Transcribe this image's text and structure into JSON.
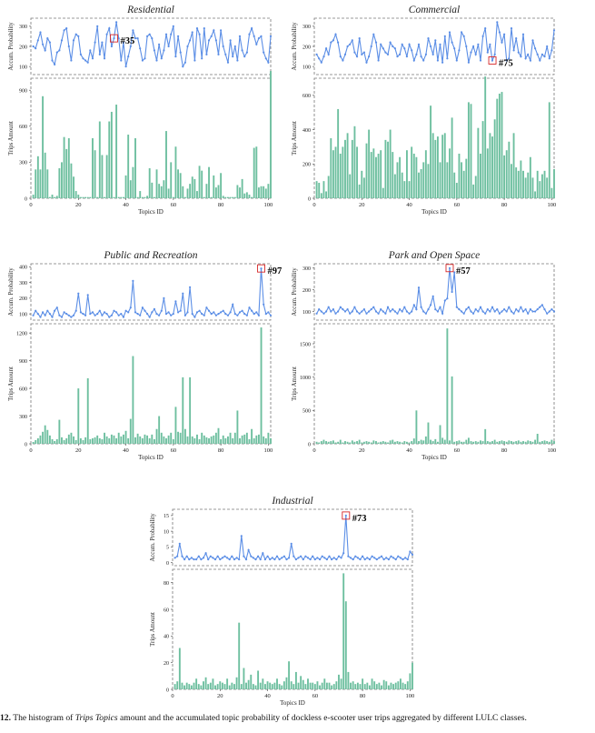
{
  "colors": {
    "line": "#5b8ee6",
    "bar": "#6dbf9f",
    "highlight": "#d62728",
    "frame": "#777777"
  },
  "caption": {
    "label": "12.",
    "pre": "The histogram of",
    "italic": "Trips Topics",
    "post": "amount and the accumulated topic probability of dockless e-scooter user trips aggregated by different LULC classes."
  },
  "chart_data": [
    {
      "type": "line",
      "panel": "Residential",
      "title": "Residential",
      "xlabel": "Topics ID",
      "ylabel": "Accum. Probability",
      "xlim": [
        0,
        101
      ],
      "ylim": [
        60,
        340
      ],
      "yticks": [
        100,
        200,
        300
      ],
      "xticks": [
        0,
        20,
        40,
        60,
        80,
        100
      ],
      "highlight": {
        "x": 35,
        "label": "#35"
      },
      "x_start": 1,
      "values": [
        200,
        190,
        230,
        270,
        210,
        180,
        240,
        220,
        130,
        110,
        170,
        180,
        230,
        280,
        290,
        200,
        130,
        230,
        260,
        250,
        160,
        140,
        130,
        120,
        180,
        140,
        220,
        300,
        160,
        220,
        140,
        260,
        290,
        200,
        240,
        320,
        240,
        130,
        220,
        100,
        150,
        200,
        280,
        240,
        240,
        190,
        130,
        140,
        250,
        260,
        240,
        180,
        130,
        210,
        140,
        180,
        260,
        200,
        260,
        300,
        150,
        250,
        170,
        100,
        120,
        200,
        230,
        270,
        130,
        290,
        260,
        140,
        290,
        160,
        230,
        250,
        280,
        230,
        160,
        280,
        200,
        160,
        120,
        230,
        150,
        200,
        130,
        250,
        180,
        150,
        170,
        260,
        290,
        250,
        210,
        240,
        250,
        170,
        140,
        120,
        250
      ]
    },
    {
      "type": "bar",
      "panel": "Residential",
      "xlabel": "Topics ID",
      "ylabel": "Trips Amount",
      "xlim": [
        0,
        101
      ],
      "ylim": [
        0,
        1000
      ],
      "yticks": [
        0,
        300,
        600,
        900
      ],
      "xticks": [
        0,
        20,
        40,
        60,
        80,
        100
      ],
      "x_start": 1,
      "values": [
        30,
        240,
        350,
        240,
        850,
        380,
        240,
        10,
        30,
        10,
        20,
        250,
        300,
        510,
        410,
        500,
        290,
        180,
        60,
        30,
        10,
        10,
        10,
        10,
        10,
        500,
        400,
        10,
        640,
        360,
        10,
        360,
        640,
        720,
        10,
        780,
        10,
        10,
        10,
        190,
        530,
        150,
        260,
        500,
        10,
        60,
        10,
        10,
        20,
        250,
        130,
        10,
        240,
        120,
        100,
        150,
        560,
        80,
        300,
        10,
        430,
        240,
        210,
        100,
        10,
        80,
        120,
        180,
        160,
        60,
        270,
        230,
        10,
        120,
        260,
        10,
        190,
        90,
        110,
        210,
        20,
        10,
        10,
        10,
        10,
        10,
        110,
        90,
        160,
        40,
        50,
        30,
        10,
        420,
        430,
        90,
        100,
        100,
        80,
        120,
        1060
      ]
    },
    {
      "type": "line",
      "panel": "Commercial",
      "title": "Commercial",
      "xlabel": "Topics ID",
      "ylabel": "Accum. Probability",
      "xlim": [
        0,
        101
      ],
      "ylim": [
        60,
        340
      ],
      "yticks": [
        100,
        200,
        300
      ],
      "xticks": [
        0,
        20,
        40,
        60,
        80,
        100
      ],
      "highlight": {
        "x": 75,
        "label": "#75"
      },
      "x_start": 1,
      "values": [
        160,
        140,
        120,
        150,
        190,
        160,
        220,
        230,
        260,
        220,
        150,
        130,
        160,
        200,
        210,
        230,
        170,
        150,
        240,
        160,
        170,
        120,
        150,
        200,
        260,
        220,
        130,
        210,
        190,
        170,
        160,
        220,
        200,
        190,
        150,
        160,
        210,
        190,
        150,
        210,
        180,
        130,
        160,
        210,
        150,
        130,
        160,
        240,
        200,
        160,
        230,
        130,
        210,
        120,
        250,
        140,
        270,
        220,
        190,
        130,
        180,
        270,
        250,
        200,
        120,
        170,
        200,
        160,
        210,
        130,
        250,
        290,
        170,
        210,
        130,
        160,
        320,
        270,
        220,
        260,
        130,
        140,
        290,
        180,
        240,
        170,
        150,
        260,
        140,
        160,
        130,
        230,
        190,
        160,
        130,
        160,
        150,
        200,
        140,
        180,
        280
      ]
    },
    {
      "type": "bar",
      "panel": "Commercial",
      "xlabel": "Topics ID",
      "ylabel": "Trips Amount",
      "xlim": [
        0,
        101
      ],
      "ylim": [
        0,
        700
      ],
      "yticks": [
        0,
        200,
        400,
        600
      ],
      "xticks": [
        0,
        20,
        40,
        60,
        80,
        100
      ],
      "x_start": 1,
      "values": [
        100,
        90,
        30,
        100,
        40,
        130,
        350,
        280,
        300,
        520,
        260,
        300,
        340,
        380,
        140,
        340,
        420,
        300,
        80,
        160,
        120,
        320,
        400,
        270,
        290,
        240,
        260,
        280,
        60,
        340,
        330,
        400,
        270,
        140,
        210,
        240,
        150,
        100,
        280,
        100,
        300,
        260,
        240,
        150,
        170,
        210,
        280,
        200,
        540,
        380,
        340,
        360,
        210,
        370,
        380,
        210,
        290,
        470,
        150,
        90,
        260,
        210,
        160,
        230,
        560,
        550,
        80,
        130,
        410,
        260,
        450,
        710,
        290,
        380,
        360,
        460,
        580,
        610,
        620,
        250,
        280,
        330,
        200,
        380,
        180,
        160,
        220,
        160,
        120,
        150,
        240,
        120,
        40,
        160,
        100,
        140,
        160,
        120,
        560,
        60,
        170
      ]
    },
    {
      "type": "line",
      "panel": "Public and Recreation",
      "title": "Public and Recreation",
      "xlabel": "Topics ID",
      "ylabel": "Accum. Probability",
      "xlim": [
        0,
        101
      ],
      "ylim": [
        60,
        420
      ],
      "yticks": [
        100,
        200,
        300,
        400
      ],
      "xticks": [
        0,
        20,
        40,
        60,
        80,
        100
      ],
      "highlight": {
        "x": 97,
        "label": "#97"
      },
      "x_start": 1,
      "values": [
        90,
        120,
        100,
        80,
        110,
        90,
        120,
        100,
        80,
        120,
        140,
        90,
        80,
        110,
        100,
        90,
        80,
        90,
        120,
        230,
        110,
        100,
        90,
        220,
        100,
        110,
        90,
        100,
        120,
        90,
        110,
        100,
        80,
        90,
        120,
        110,
        90,
        100,
        80,
        120,
        110,
        140,
        310,
        110,
        100,
        90,
        140,
        120,
        100,
        80,
        110,
        130,
        100,
        90,
        120,
        200,
        100,
        110,
        90,
        100,
        180,
        110,
        120,
        230,
        90,
        110,
        270,
        100,
        80,
        110,
        120,
        100,
        90,
        140,
        120,
        100,
        110,
        90,
        100,
        110,
        120,
        100,
        90,
        110,
        160,
        100,
        90,
        110,
        120,
        100,
        90,
        140,
        120,
        100,
        110,
        90,
        390,
        160,
        100,
        110,
        90
      ]
    },
    {
      "type": "bar",
      "panel": "Public and Recreation",
      "xlabel": "Topics ID",
      "ylabel": "Trips Amount",
      "xlim": [
        0,
        101
      ],
      "ylim": [
        0,
        1300
      ],
      "yticks": [
        0,
        300,
        600,
        900,
        1200
      ],
      "xticks": [
        0,
        20,
        40,
        60,
        80,
        100
      ],
      "x_start": 1,
      "values": [
        20,
        40,
        60,
        90,
        130,
        200,
        150,
        90,
        50,
        30,
        50,
        260,
        70,
        40,
        60,
        100,
        120,
        80,
        40,
        600,
        60,
        40,
        70,
        710,
        50,
        60,
        70,
        90,
        60,
        50,
        120,
        80,
        60,
        100,
        90,
        60,
        120,
        80,
        100,
        140,
        60,
        270,
        950,
        70,
        110,
        80,
        60,
        100,
        90,
        60,
        100,
        50,
        160,
        300,
        120,
        80,
        60,
        90,
        120,
        50,
        400,
        130,
        120,
        720,
        160,
        80,
        720,
        80,
        60,
        100,
        50,
        120,
        90,
        70,
        60,
        80,
        90,
        120,
        170,
        50,
        90,
        60,
        80,
        120,
        60,
        120,
        360,
        60,
        90,
        100,
        120,
        50,
        160,
        60,
        90,
        100,
        1260,
        80,
        60,
        120,
        60
      ]
    },
    {
      "type": "line",
      "panel": "Park and Open Space",
      "title": "Park and Open Space",
      "xlabel": "Topics ID",
      "ylabel": "Accum. Probability",
      "xlim": [
        0,
        101
      ],
      "ylim": [
        60,
        320
      ],
      "yticks": [
        100,
        200,
        300
      ],
      "xticks": [
        0,
        20,
        40,
        60,
        80,
        100
      ],
      "highlight": {
        "x": 57,
        "label": "#57"
      },
      "x_start": 1,
      "values": [
        90,
        110,
        100,
        90,
        100,
        120,
        100,
        110,
        90,
        100,
        120,
        110,
        100,
        110,
        90,
        100,
        120,
        100,
        90,
        100,
        110,
        90,
        100,
        110,
        120,
        100,
        90,
        110,
        100,
        90,
        120,
        100,
        110,
        100,
        90,
        110,
        100,
        120,
        100,
        90,
        100,
        130,
        110,
        210,
        120,
        100,
        90,
        110,
        130,
        170,
        110,
        100,
        120,
        90,
        150,
        160,
        300,
        190,
        280,
        120,
        110,
        100,
        90,
        110,
        120,
        100,
        90,
        110,
        100,
        120,
        100,
        90,
        110,
        100,
        120,
        100,
        110,
        90,
        100,
        110,
        100,
        120,
        100,
        90,
        110,
        100,
        120,
        100,
        110,
        90,
        110,
        100,
        100,
        110,
        120,
        130,
        110,
        90,
        100,
        110,
        100
      ]
    },
    {
      "type": "bar",
      "panel": "Park and Open Space",
      "xlabel": "Topics ID",
      "ylabel": "Trips Amount",
      "xlim": [
        0,
        101
      ],
      "ylim": [
        0,
        1800
      ],
      "yticks": [
        0,
        500,
        1000,
        1500
      ],
      "xticks": [
        0,
        20,
        40,
        60,
        80,
        100
      ],
      "x_start": 1,
      "values": [
        30,
        20,
        40,
        60,
        40,
        30,
        40,
        50,
        20,
        30,
        60,
        20,
        40,
        30,
        20,
        50,
        30,
        40,
        60,
        20,
        30,
        40,
        30,
        20,
        50,
        40,
        20,
        30,
        40,
        30,
        20,
        50,
        60,
        30,
        40,
        30,
        20,
        40,
        30,
        20,
        40,
        80,
        500,
        40,
        60,
        50,
        110,
        320,
        60,
        40,
        70,
        30,
        280,
        90,
        60,
        1730,
        50,
        1010,
        30,
        40,
        50,
        30,
        30,
        60,
        90,
        40,
        30,
        40,
        30,
        50,
        40,
        220,
        40,
        30,
        40,
        60,
        30,
        40,
        50,
        40,
        30,
        50,
        40,
        30,
        40,
        50,
        30,
        40,
        30,
        50,
        40,
        30,
        60,
        150,
        30,
        40,
        50,
        40,
        30,
        60,
        40
      ]
    },
    {
      "type": "line",
      "panel": "Industrial",
      "title": "Industrial",
      "xlabel": "Topics ID",
      "ylabel": "Accum. Probability",
      "xlim": [
        0,
        101
      ],
      "ylim": [
        -1,
        17
      ],
      "yticks": [
        0,
        5,
        10,
        15
      ],
      "xticks": [
        0,
        20,
        40,
        60,
        80,
        100
      ],
      "highlight": {
        "x": 73,
        "label": "#73"
      },
      "x_start": 1,
      "values": [
        1.5,
        2,
        6,
        2,
        1,
        2,
        1,
        1.5,
        1,
        1,
        2,
        1,
        1.5,
        3,
        1,
        2,
        1.5,
        1,
        2,
        1,
        1.5,
        2,
        1.5,
        1,
        2,
        1,
        1.5,
        1,
        8.5,
        2,
        1,
        4,
        2,
        1.5,
        1,
        2,
        1,
        3,
        1,
        2,
        1,
        1.5,
        1,
        2,
        1,
        1.5,
        2,
        1,
        1.5,
        6,
        2,
        1,
        1.5,
        2,
        1,
        2,
        1.5,
        1,
        2,
        1,
        1.5,
        1,
        2,
        1.5,
        1,
        2,
        1,
        1.5,
        1,
        2,
        1.5,
        3,
        15,
        2,
        1.5,
        1,
        2,
        1.5,
        1,
        2,
        1,
        1.5,
        1,
        2,
        1.5,
        1,
        1.5,
        2,
        1,
        1.5,
        1,
        2,
        1.5,
        1,
        2,
        1.5,
        1,
        1.5,
        1,
        3.5,
        2.5
      ]
    },
    {
      "type": "bar",
      "panel": "Industrial",
      "xlabel": "Topics ID",
      "ylabel": "Trips Amount",
      "xlim": [
        0,
        101
      ],
      "ylim": [
        0,
        90
      ],
      "yticks": [
        0,
        20,
        40,
        60,
        80
      ],
      "xticks": [
        0,
        20,
        40,
        60,
        80,
        100
      ],
      "x_start": 1,
      "values": [
        4,
        6,
        31,
        5,
        3,
        5,
        4,
        3,
        5,
        8,
        4,
        3,
        6,
        9,
        4,
        5,
        8,
        3,
        4,
        6,
        5,
        4,
        8,
        3,
        5,
        4,
        9,
        50,
        4,
        16,
        5,
        7,
        11,
        4,
        3,
        14,
        5,
        8,
        4,
        6,
        5,
        4,
        5,
        8,
        4,
        3,
        6,
        9,
        21,
        6,
        4,
        13,
        5,
        10,
        7,
        4,
        8,
        5,
        5,
        4,
        6,
        3,
        5,
        8,
        5,
        5,
        3,
        4,
        6,
        11,
        8,
        87,
        66,
        13,
        5,
        6,
        4,
        5,
        4,
        8,
        4,
        5,
        3,
        8,
        6,
        4,
        5,
        3,
        7,
        6,
        3,
        5,
        4,
        5,
        6,
        8,
        5,
        4,
        6,
        12,
        20
      ]
    }
  ]
}
